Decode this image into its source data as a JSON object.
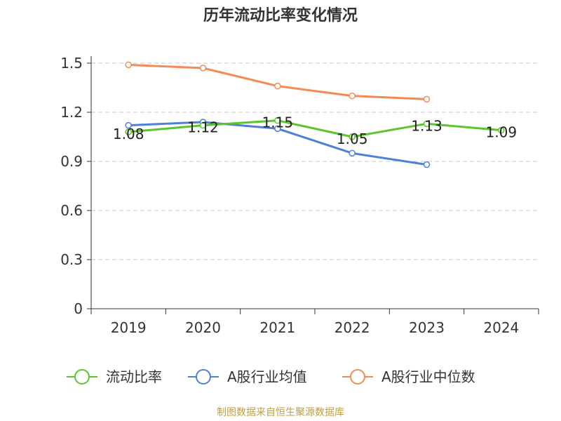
{
  "title": "历年流动比率变化情况",
  "footer": "制图数据来自恒生聚源数据库",
  "chart_data": {
    "type": "line",
    "title": "历年流动比率变化情况",
    "categories": [
      "2019",
      "2020",
      "2021",
      "2022",
      "2023",
      "2024"
    ],
    "ylim": [
      0,
      1.5
    ],
    "yticks": [
      0,
      0.3,
      0.6,
      0.9,
      1.2,
      1.5
    ],
    "ytick_labels": [
      "0",
      "0.3",
      "0.6",
      "0.9",
      "1.2",
      "1.5"
    ],
    "grid": true,
    "legend_position": "bottom",
    "series": [
      {
        "name": "流动比率",
        "color": "#5ac62b",
        "values": [
          1.08,
          1.12,
          1.15,
          1.05,
          1.13,
          1.09
        ],
        "labels": [
          "1.08",
          "1.12",
          "1.15",
          "1.05",
          "1.13",
          "1.09"
        ]
      },
      {
        "name": "A股行业均值",
        "color": "#4e80d8",
        "values": [
          1.12,
          1.14,
          1.1,
          0.95,
          0.88,
          null
        ]
      },
      {
        "name": "A股行业中位数",
        "color": "#f28c54",
        "values": [
          1.49,
          1.47,
          1.36,
          1.3,
          1.28,
          null
        ]
      }
    ]
  }
}
